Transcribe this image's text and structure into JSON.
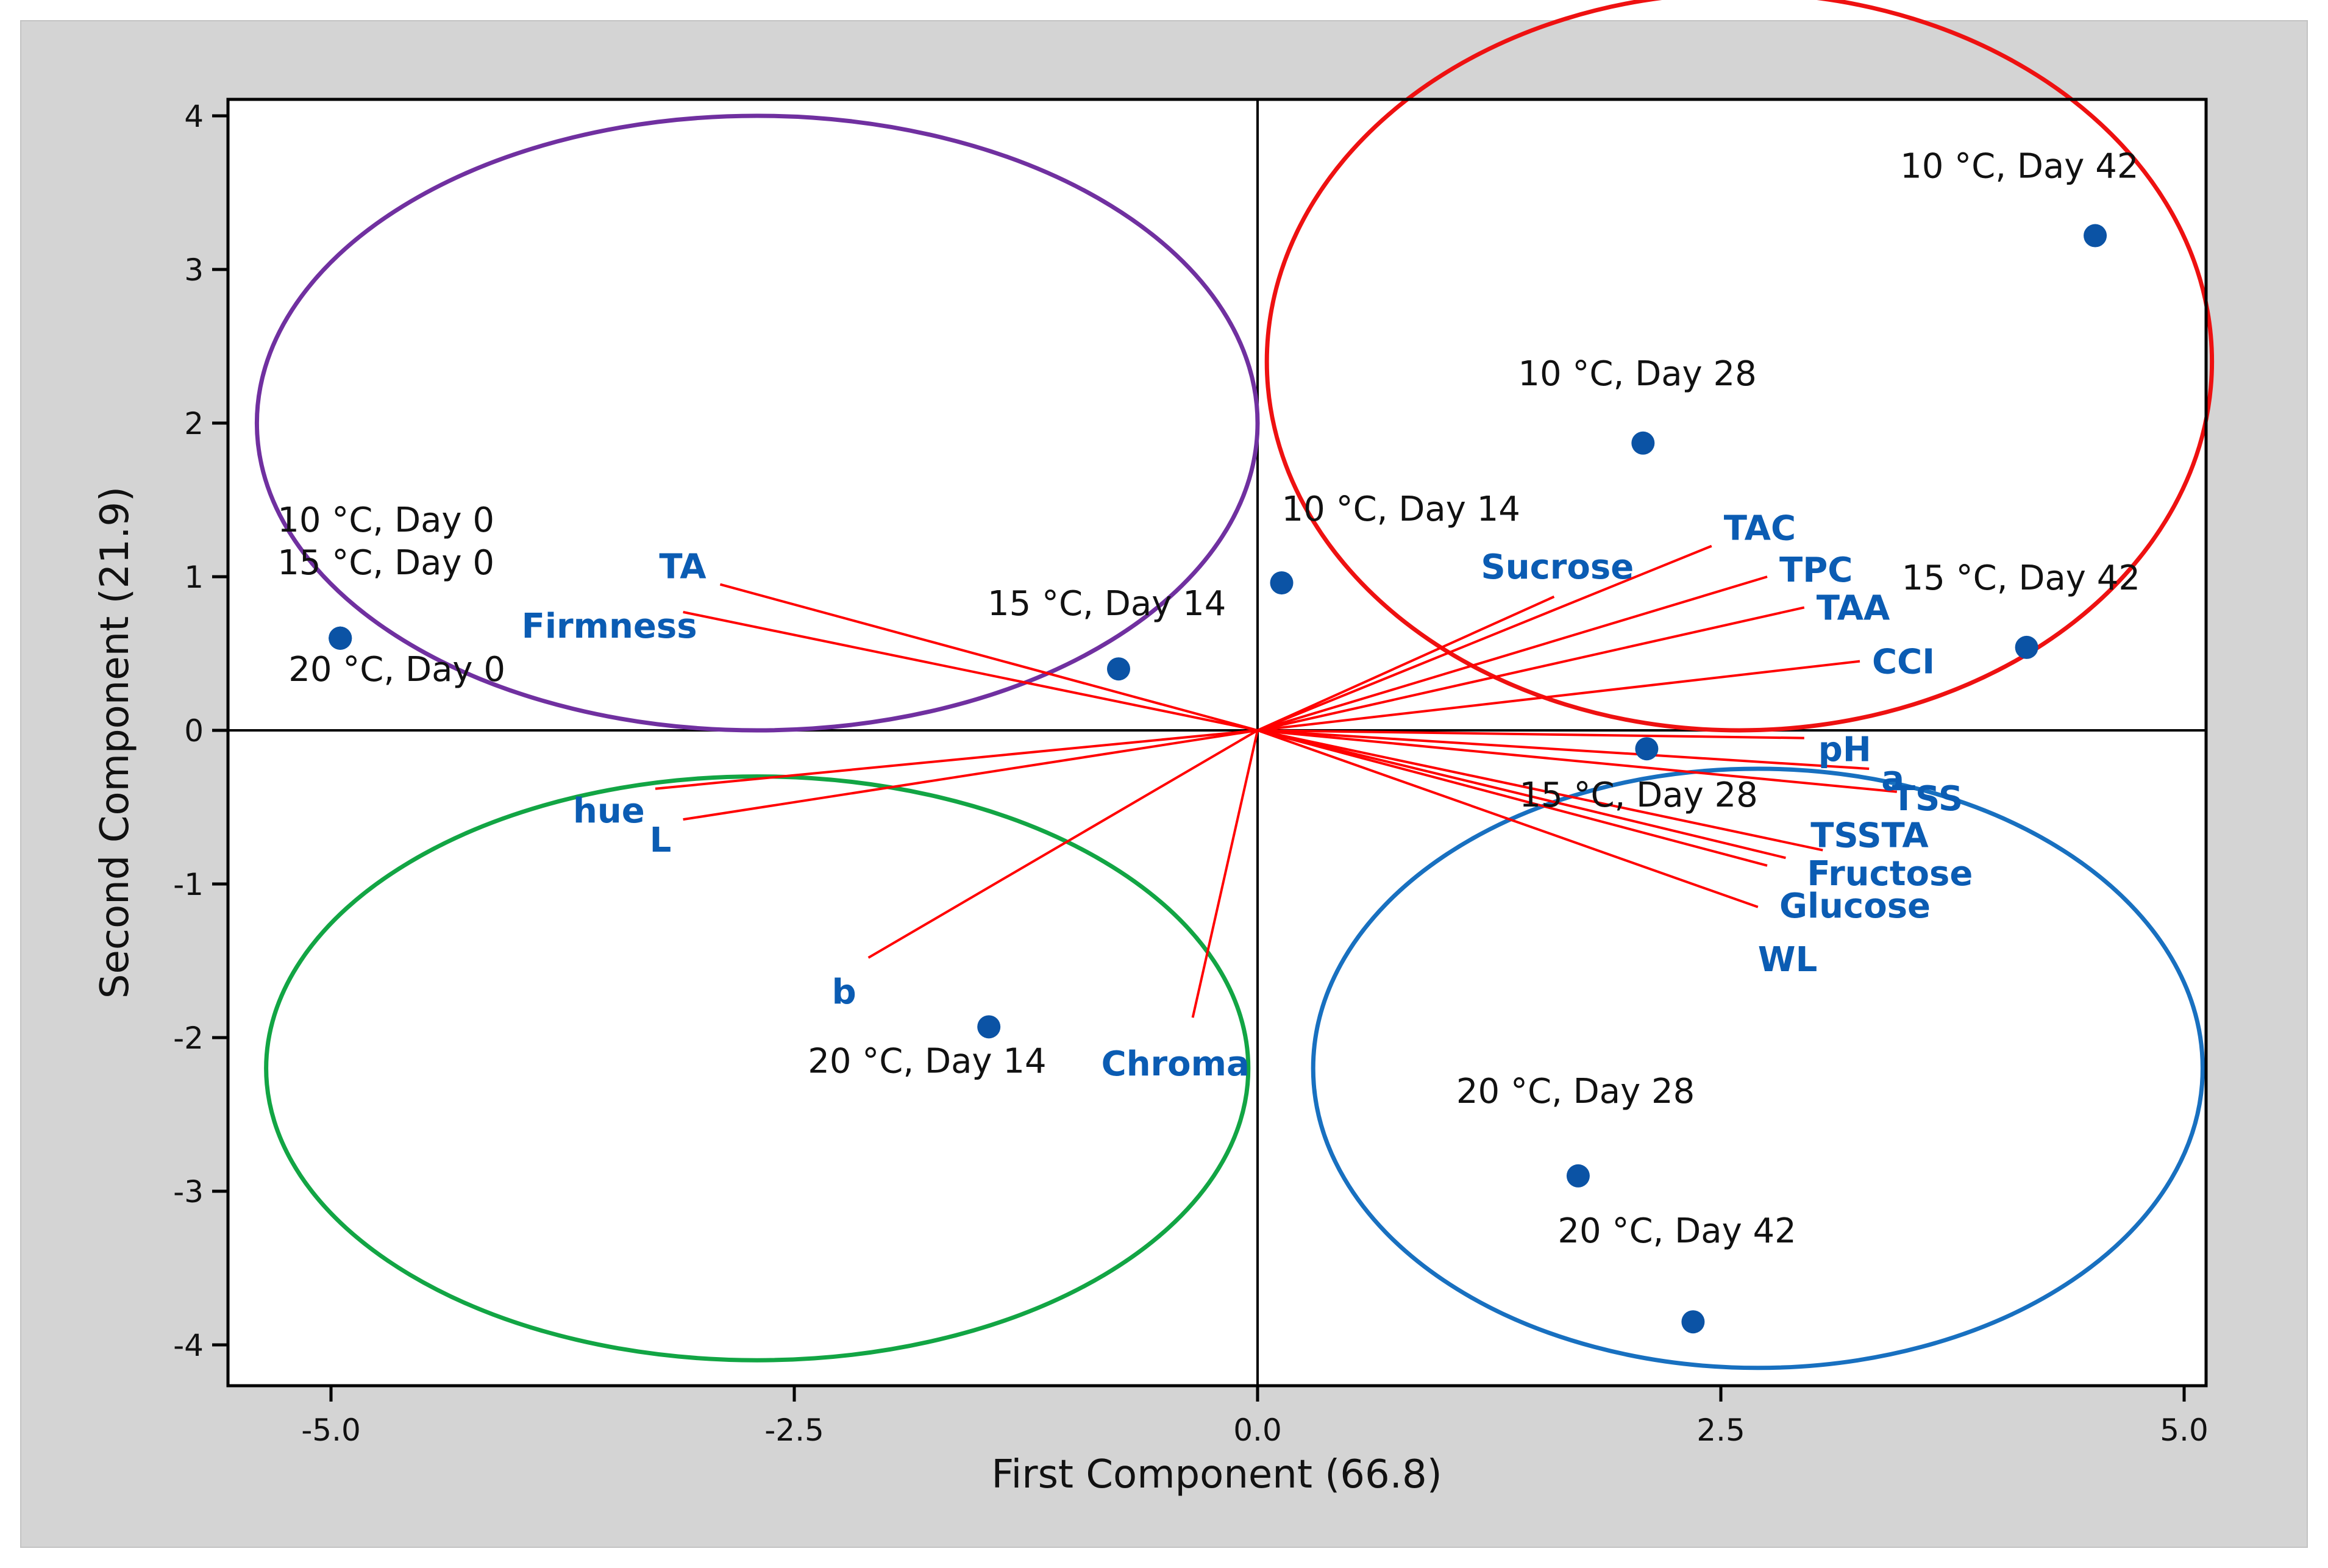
{
  "chart_data": {
    "type": "scatter",
    "subtype": "pca-biplot",
    "title": "",
    "xlabel": "First Component (66.8)",
    "ylabel": "Second Component (21.9)",
    "xlim": [
      -5.5,
      5.2
    ],
    "ylim": [
      -4.25,
      4.1
    ],
    "xticks": [
      -5.0,
      -2.5,
      0.0,
      2.5,
      5.0
    ],
    "xtick_labels": [
      "-5.0",
      "-2.5",
      "0.0",
      "2.5",
      "5.0"
    ],
    "yticks": [
      -4,
      -3,
      -2,
      -1,
      0,
      1,
      2,
      3,
      4
    ],
    "ytick_labels": [
      "-4",
      "-3",
      "-2",
      "-1",
      "0",
      "1",
      "2",
      "3",
      "4"
    ],
    "reference_lines": {
      "x": 0,
      "y": 0
    },
    "points": [
      {
        "label": "10 °C, Day 0",
        "x": -4.95,
        "y": 0.6
      },
      {
        "label": "15 °C, Day 0",
        "x": -4.95,
        "y": 0.6
      },
      {
        "label": "20 °C, Day 0",
        "x": -4.95,
        "y": 0.6
      },
      {
        "label": "15 °C, Day 14",
        "x": -0.75,
        "y": 0.4
      },
      {
        "label": "10 °C, Day 14",
        "x": 0.13,
        "y": 0.96
      },
      {
        "label": "10 °C, Day 28",
        "x": 2.08,
        "y": 1.87
      },
      {
        "label": "10 °C, Day 42",
        "x": 4.52,
        "y": 3.22
      },
      {
        "label": "15 °C, Day 42",
        "x": 4.15,
        "y": 0.54
      },
      {
        "label": "15 °C, Day 28",
        "x": 2.1,
        "y": -0.12
      },
      {
        "label": "20 °C, Day 14",
        "x": -1.45,
        "y": -1.93
      },
      {
        "label": "20 °C, Day 28",
        "x": 1.73,
        "y": -2.9
      },
      {
        "label": "20 °C, Day 42",
        "x": 2.35,
        "y": -3.85
      }
    ],
    "loadings": [
      {
        "label": "TA",
        "x": -2.9,
        "y": 0.95
      },
      {
        "label": "Firmness",
        "x": -3.1,
        "y": 0.77
      },
      {
        "label": "hue",
        "x": -3.25,
        "y": -0.38
      },
      {
        "label": "L",
        "x": -3.1,
        "y": -0.58
      },
      {
        "label": "b",
        "x": -2.1,
        "y": -1.48
      },
      {
        "label": "Chroma",
        "x": -0.35,
        "y": -1.87
      },
      {
        "label": "Sucrose",
        "x": 1.6,
        "y": 0.87
      },
      {
        "label": "TAC",
        "x": 2.45,
        "y": 1.2
      },
      {
        "label": "TPC",
        "x": 2.75,
        "y": 1.0
      },
      {
        "label": "TAA",
        "x": 2.95,
        "y": 0.8
      },
      {
        "label": "CCI",
        "x": 3.25,
        "y": 0.45
      },
      {
        "label": "pH",
        "x": 2.95,
        "y": -0.05
      },
      {
        "label": "a",
        "x": 3.3,
        "y": -0.25
      },
      {
        "label": "TSS",
        "x": 3.45,
        "y": -0.4
      },
      {
        "label": "TSSTA",
        "x": 3.05,
        "y": -0.78
      },
      {
        "label": "Fructose",
        "x": 2.85,
        "y": -0.83
      },
      {
        "label": "Glucose",
        "x": 2.75,
        "y": -0.88
      },
      {
        "label": "WL",
        "x": 2.7,
        "y": -1.15
      }
    ],
    "groups": [
      {
        "name": "purple-group",
        "color": "#7030a0",
        "cx": -2.7,
        "cy": 2.0,
        "rx": 2.7,
        "ry": 2.0
      },
      {
        "name": "red-group",
        "color": "#ee1111",
        "cx": 2.6,
        "cy": 2.4,
        "rx": 2.55,
        "ry": 2.4
      },
      {
        "name": "green-group",
        "color": "#12a544",
        "cx": -2.7,
        "cy": -2.2,
        "rx": 2.65,
        "ry": 1.9
      },
      {
        "name": "blue-group",
        "color": "#1870c0",
        "cx": 2.7,
        "cy": -2.2,
        "rx": 2.4,
        "ry": 1.95
      }
    ],
    "colors": {
      "point": "#0b53a5",
      "loading_line": "#ff0000",
      "loading_label": "#0b5cb3",
      "axes": "#000000",
      "frame_background": "#d4d4d4"
    }
  }
}
